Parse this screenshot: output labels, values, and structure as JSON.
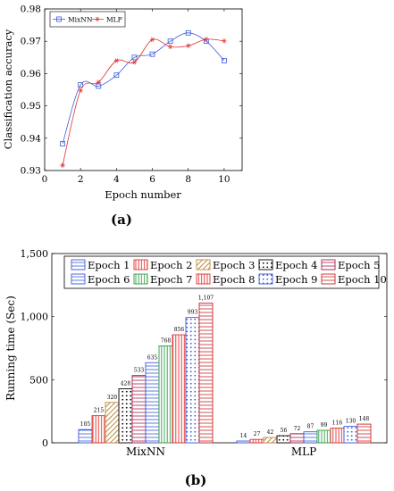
{
  "chart_data": [
    {
      "type": "line",
      "panel_label": "(a)",
      "xlabel": "Epoch number",
      "ylabel": "Classification accuracy",
      "xlim": [
        0,
        11
      ],
      "ylim": [
        0.93,
        0.98
      ],
      "xticks": [
        "0",
        "2",
        "4",
        "6",
        "8",
        "10"
      ],
      "yticks": [
        "0.93",
        "0.94",
        "0.95",
        "0.96",
        "0.97",
        "0.98"
      ],
      "legend_position": "top-left",
      "x": [
        1,
        2,
        3,
        4,
        5,
        6,
        7,
        8,
        9,
        10
      ],
      "series": [
        {
          "name": "MixNN",
          "marker": "square",
          "color": "#3b5bdb",
          "values": [
            0.9383,
            0.9565,
            0.9561,
            0.9595,
            0.965,
            0.966,
            0.97,
            0.9726,
            0.97,
            0.964
          ]
        },
        {
          "name": "MLP",
          "marker": "star",
          "color": "#e03131",
          "values": [
            0.9316,
            0.9548,
            0.9573,
            0.964,
            0.9635,
            0.9705,
            0.9683,
            0.9686,
            0.9706,
            0.9701
          ]
        }
      ]
    },
    {
      "type": "bar",
      "panel_label": "(b)",
      "ylabel": "Running time (Sec)",
      "ylim": [
        0,
        1500
      ],
      "yticks": [
        "0",
        "500",
        "1,000",
        "1,500"
      ],
      "categories": [
        "MixNN",
        "MLP"
      ],
      "legend_position": "top",
      "series": [
        {
          "name": "Epoch 1",
          "pattern": "hlines",
          "color": "#3b5bdb",
          "values": [
            105,
            14
          ],
          "labels": [
            "105",
            "14"
          ]
        },
        {
          "name": "Epoch 2",
          "pattern": "vlines",
          "color": "#e03131",
          "values": [
            215,
            27
          ],
          "labels": [
            "215",
            "27"
          ]
        },
        {
          "name": "Epoch 3",
          "pattern": "diag",
          "color": "#c08a3e",
          "values": [
            320,
            42
          ],
          "labels": [
            "320",
            "42"
          ]
        },
        {
          "name": "Epoch 4",
          "pattern": "dots",
          "color": "#000000",
          "values": [
            428,
            56
          ],
          "labels": [
            "428",
            "56"
          ]
        },
        {
          "name": "Epoch 5",
          "pattern": "hlines",
          "color": "#a61e4d",
          "values": [
            533,
            72
          ],
          "labels": [
            "533",
            "72"
          ]
        },
        {
          "name": "Epoch 6",
          "pattern": "hlines",
          "color": "#3b5bdb",
          "values": [
            635,
            87
          ],
          "labels": [
            "635",
            "87"
          ]
        },
        {
          "name": "Epoch 7",
          "pattern": "vlines",
          "color": "#2f9e44",
          "values": [
            768,
            99
          ],
          "labels": [
            "768",
            "99"
          ]
        },
        {
          "name": "Epoch 8",
          "pattern": "vlines",
          "color": "#e03131",
          "values": [
            856,
            116
          ],
          "labels": [
            "856",
            "116"
          ]
        },
        {
          "name": "Epoch 9",
          "pattern": "dots",
          "color": "#3b5bdb",
          "values": [
            993,
            130
          ],
          "labels": [
            "993",
            "130"
          ]
        },
        {
          "name": "Epoch 10",
          "pattern": "hlines",
          "color": "#c92a2a",
          "values": [
            1107,
            148
          ],
          "labels": [
            "1,107",
            "148"
          ]
        }
      ]
    }
  ]
}
